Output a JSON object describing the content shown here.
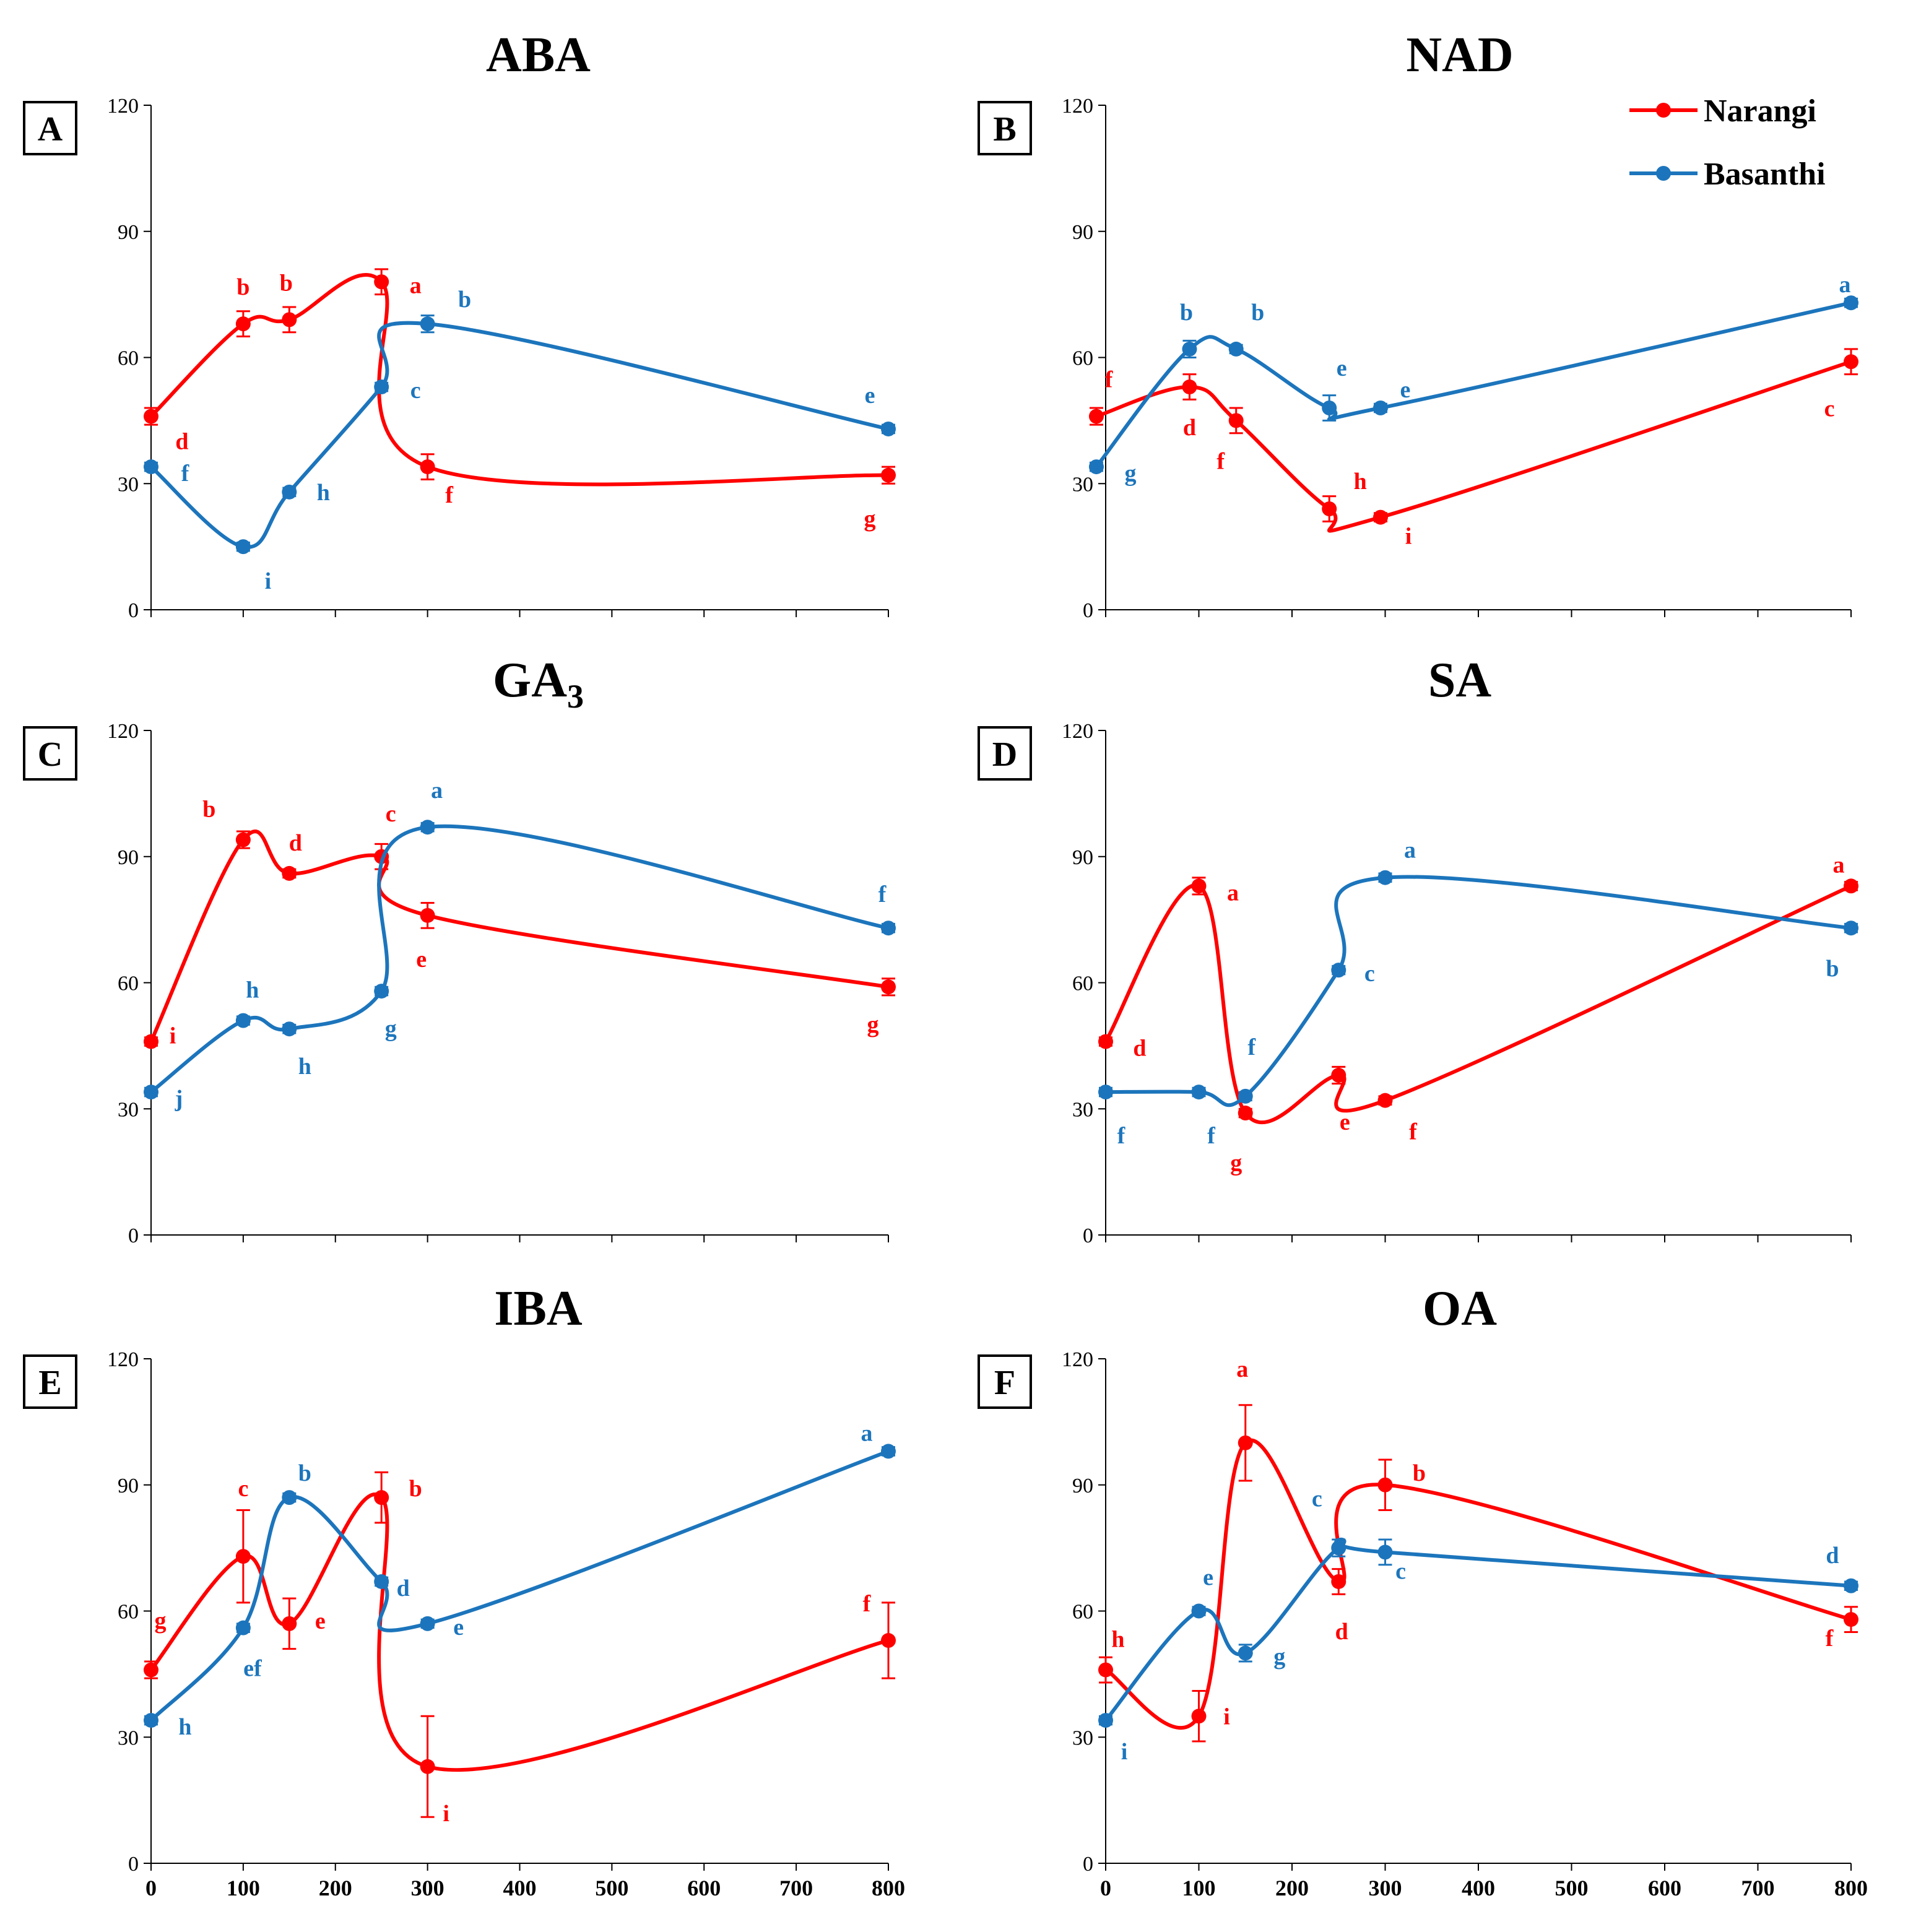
{
  "legend": {
    "entries": [
      {
        "name": "Narangi",
        "color": "#ff0000"
      },
      {
        "name": "Basanthi",
        "color": "#1c75bc"
      }
    ]
  },
  "chart_data": [
    {
      "type": "line",
      "label": "A",
      "title": "ABA",
      "title_sub": "",
      "x_ticks": [
        0,
        100,
        200,
        300,
        400,
        500,
        600,
        700,
        800
      ],
      "y_ticks": [
        0,
        30,
        60,
        90,
        120
      ],
      "ylim": [
        0,
        120
      ],
      "xlim": [
        0,
        800
      ],
      "series": [
        {
          "name": "Narangi",
          "color": "#ff0000",
          "x": [
            0,
            100,
            150,
            250,
            300,
            800
          ],
          "y": [
            46,
            68,
            69,
            78,
            34,
            32
          ],
          "err": [
            2,
            3,
            3,
            3,
            3,
            2
          ],
          "letters": [
            "d",
            "b",
            "b",
            "a",
            "f",
            "g"
          ]
        },
        {
          "name": "Basanthi",
          "color": "#1c75bc",
          "x": [
            0,
            100,
            150,
            250,
            300,
            800
          ],
          "y": [
            34,
            15,
            28,
            53,
            68,
            43
          ],
          "err": [
            1,
            1,
            1,
            1,
            2,
            1
          ],
          "letters": [
            "f",
            "i",
            "h",
            "c",
            "b",
            "e"
          ]
        }
      ]
    },
    {
      "type": "line",
      "label": "B",
      "title": "NAD",
      "title_sub": "",
      "x_ticks": [
        0,
        100,
        200,
        300,
        400,
        500,
        600,
        700,
        800
      ],
      "y_ticks": [
        0,
        30,
        60,
        90,
        120
      ],
      "ylim": [
        0,
        120
      ],
      "xlim": [
        0,
        800
      ],
      "series": [
        {
          "name": "Narangi",
          "color": "#ff0000",
          "x": [
            -10,
            90,
            140,
            240,
            295,
            800
          ],
          "y": [
            46,
            53,
            45,
            24,
            22,
            59
          ],
          "err": [
            2,
            3,
            3,
            3,
            1,
            3
          ],
          "letters": [
            "f",
            "d",
            "f",
            "h",
            "i",
            "c"
          ]
        },
        {
          "name": "Basanthi",
          "color": "#1c75bc",
          "x": [
            -10,
            90,
            140,
            240,
            295,
            800
          ],
          "y": [
            34,
            62,
            62,
            48,
            48,
            73
          ],
          "err": [
            1,
            2,
            1,
            3,
            1,
            1
          ],
          "letters": [
            "g",
            "b",
            "b",
            "e",
            "e",
            "a"
          ]
        }
      ]
    },
    {
      "type": "line",
      "label": "C",
      "title": "GA",
      "title_sub": "3",
      "x_ticks": [
        0,
        100,
        200,
        300,
        400,
        500,
        600,
        700,
        800
      ],
      "y_ticks": [
        0,
        30,
        60,
        90,
        120
      ],
      "ylim": [
        0,
        120
      ],
      "xlim": [
        0,
        800
      ],
      "series": [
        {
          "name": "Narangi",
          "color": "#ff0000",
          "x": [
            0,
            100,
            150,
            250,
            300,
            800
          ],
          "y": [
            46,
            94,
            86,
            90,
            76,
            59
          ],
          "err": [
            1,
            2,
            1,
            3,
            3,
            2
          ],
          "letters": [
            "i",
            "b",
            "d",
            "c",
            "e",
            "g"
          ]
        },
        {
          "name": "Basanthi",
          "color": "#1c75bc",
          "x": [
            0,
            100,
            150,
            250,
            300,
            800
          ],
          "y": [
            34,
            51,
            49,
            58,
            97,
            73
          ],
          "err": [
            1,
            1,
            1,
            1,
            1,
            1
          ],
          "letters": [
            "j",
            "h",
            "h",
            "g",
            "a",
            "f"
          ]
        }
      ]
    },
    {
      "type": "line",
      "label": "D",
      "title": "SA",
      "title_sub": "",
      "x_ticks": [
        0,
        100,
        200,
        300,
        400,
        500,
        600,
        700,
        800
      ],
      "y_ticks": [
        0,
        30,
        60,
        90,
        120
      ],
      "ylim": [
        0,
        120
      ],
      "xlim": [
        0,
        800
      ],
      "series": [
        {
          "name": "Narangi",
          "color": "#ff0000",
          "x": [
            0,
            100,
            150,
            250,
            300,
            800
          ],
          "y": [
            46,
            83,
            29,
            38,
            32,
            83
          ],
          "err": [
            1,
            2,
            1,
            2,
            1,
            1
          ],
          "letters": [
            "d",
            "a",
            "g",
            "e",
            "f",
            "a"
          ]
        },
        {
          "name": "Basanthi",
          "color": "#1c75bc",
          "x": [
            0,
            100,
            150,
            250,
            300,
            800
          ],
          "y": [
            34,
            34,
            33,
            63,
            85,
            73
          ],
          "err": [
            1,
            1,
            1,
            1,
            1,
            1
          ],
          "letters": [
            "f",
            "f",
            "f",
            "c",
            "a",
            "b"
          ]
        }
      ]
    },
    {
      "type": "line",
      "label": "E",
      "title": "IBA",
      "title_sub": "",
      "x_ticks": [
        0,
        100,
        200,
        300,
        400,
        500,
        600,
        700,
        800
      ],
      "y_ticks": [
        0,
        30,
        60,
        90,
        120
      ],
      "ylim": [
        0,
        120
      ],
      "xlim": [
        0,
        800
      ],
      "series": [
        {
          "name": "Narangi",
          "color": "#ff0000",
          "x": [
            0,
            100,
            150,
            250,
            300,
            800
          ],
          "y": [
            46,
            73,
            57,
            87,
            23,
            53
          ],
          "err": [
            2,
            11,
            6,
            6,
            12,
            9
          ],
          "letters": [
            "g",
            "c",
            "e",
            "b",
            "i",
            "f"
          ]
        },
        {
          "name": "Basanthi",
          "color": "#1c75bc",
          "x": [
            0,
            100,
            150,
            250,
            300,
            800
          ],
          "y": [
            34,
            56,
            87,
            67,
            57,
            98
          ],
          "err": [
            1,
            1,
            1,
            1,
            1,
            1
          ],
          "letters": [
            "h",
            "ef",
            "b",
            "d",
            "e",
            "a"
          ]
        }
      ]
    },
    {
      "type": "line",
      "label": "F",
      "title": "OA",
      "title_sub": "",
      "x_ticks": [
        0,
        100,
        200,
        300,
        400,
        500,
        600,
        700,
        800
      ],
      "y_ticks": [
        0,
        30,
        60,
        90,
        120
      ],
      "ylim": [
        0,
        120
      ],
      "xlim": [
        0,
        800
      ],
      "series": [
        {
          "name": "Narangi",
          "color": "#ff0000",
          "x": [
            0,
            100,
            150,
            250,
            300,
            800
          ],
          "y": [
            46,
            35,
            100,
            67,
            90,
            58
          ],
          "err": [
            3,
            6,
            9,
            3,
            6,
            3
          ],
          "letters": [
            "h",
            "i",
            "a",
            "d",
            "b",
            "f"
          ]
        },
        {
          "name": "Basanthi",
          "color": "#1c75bc",
          "x": [
            0,
            100,
            150,
            250,
            300,
            800
          ],
          "y": [
            34,
            60,
            50,
            75,
            74,
            66
          ],
          "err": [
            1,
            1,
            2,
            2,
            3,
            1
          ],
          "letters": [
            "i",
            "e",
            "g",
            "c",
            "c",
            "d"
          ]
        }
      ]
    }
  ]
}
